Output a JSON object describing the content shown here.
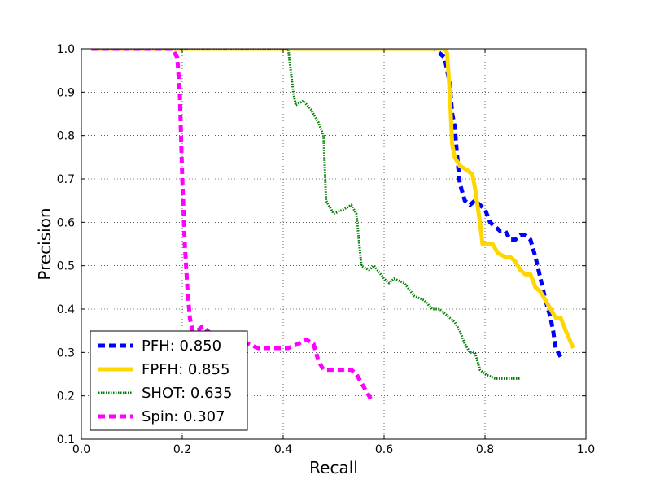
{
  "chart_data": {
    "type": "line",
    "title": "",
    "xlabel": "Recall",
    "ylabel": "Precision",
    "xlim": [
      0.0,
      1.0
    ],
    "ylim": [
      0.1,
      1.0
    ],
    "x_ticks": [
      "0.0",
      "0.2",
      "0.4",
      "0.6",
      "0.8",
      "1.0"
    ],
    "y_ticks": [
      "0.1",
      "0.2",
      "0.3",
      "0.4",
      "0.5",
      "0.6",
      "0.7",
      "0.8",
      "0.9",
      "1.0"
    ],
    "grid": true,
    "legend_position": "lower-left",
    "series": [
      {
        "name": "PFH: 0.850",
        "color": "#0000ff",
        "line_style": "dashed",
        "points": [
          [
            0.02,
            1.0
          ],
          [
            0.3,
            1.0
          ],
          [
            0.6,
            1.0
          ],
          [
            0.7,
            1.0
          ],
          [
            0.72,
            0.98
          ],
          [
            0.73,
            0.92
          ],
          [
            0.735,
            0.85
          ],
          [
            0.74,
            0.82
          ],
          [
            0.745,
            0.75
          ],
          [
            0.75,
            0.69
          ],
          [
            0.76,
            0.65
          ],
          [
            0.77,
            0.64
          ],
          [
            0.78,
            0.65
          ],
          [
            0.79,
            0.64
          ],
          [
            0.8,
            0.63
          ],
          [
            0.81,
            0.6
          ],
          [
            0.82,
            0.59
          ],
          [
            0.83,
            0.58
          ],
          [
            0.84,
            0.58
          ],
          [
            0.85,
            0.56
          ],
          [
            0.86,
            0.56
          ],
          [
            0.87,
            0.57
          ],
          [
            0.88,
            0.57
          ],
          [
            0.89,
            0.56
          ],
          [
            0.9,
            0.52
          ],
          [
            0.91,
            0.47
          ],
          [
            0.92,
            0.42
          ],
          [
            0.93,
            0.38
          ],
          [
            0.935,
            0.35
          ],
          [
            0.94,
            0.31
          ],
          [
            0.95,
            0.29
          ]
        ]
      },
      {
        "name": "FPFH: 0.855",
        "color": "#ffd700",
        "line_style": "solid",
        "points": [
          [
            0.02,
            1.0
          ],
          [
            0.3,
            1.0
          ],
          [
            0.6,
            1.0
          ],
          [
            0.72,
            1.0
          ],
          [
            0.725,
            0.99
          ],
          [
            0.73,
            0.9
          ],
          [
            0.735,
            0.78
          ],
          [
            0.74,
            0.75
          ],
          [
            0.75,
            0.73
          ],
          [
            0.765,
            0.72
          ],
          [
            0.775,
            0.71
          ],
          [
            0.78,
            0.68
          ],
          [
            0.79,
            0.6
          ],
          [
            0.795,
            0.55
          ],
          [
            0.805,
            0.55
          ],
          [
            0.815,
            0.55
          ],
          [
            0.825,
            0.53
          ],
          [
            0.84,
            0.52
          ],
          [
            0.85,
            0.52
          ],
          [
            0.86,
            0.51
          ],
          [
            0.87,
            0.49
          ],
          [
            0.88,
            0.48
          ],
          [
            0.89,
            0.48
          ],
          [
            0.9,
            0.45
          ],
          [
            0.91,
            0.44
          ],
          [
            0.92,
            0.42
          ],
          [
            0.93,
            0.4
          ],
          [
            0.94,
            0.38
          ],
          [
            0.95,
            0.38
          ],
          [
            0.96,
            0.35
          ],
          [
            0.975,
            0.31
          ]
        ]
      },
      {
        "name": "SHOT: 0.635",
        "color": "#008000",
        "line_style": "dotted",
        "points": [
          [
            0.02,
            1.0
          ],
          [
            0.2,
            1.0
          ],
          [
            0.41,
            1.0
          ],
          [
            0.415,
            0.95
          ],
          [
            0.42,
            0.9
          ],
          [
            0.425,
            0.87
          ],
          [
            0.44,
            0.88
          ],
          [
            0.455,
            0.86
          ],
          [
            0.47,
            0.83
          ],
          [
            0.48,
            0.8
          ],
          [
            0.485,
            0.65
          ],
          [
            0.49,
            0.64
          ],
          [
            0.5,
            0.62
          ],
          [
            0.52,
            0.63
          ],
          [
            0.535,
            0.64
          ],
          [
            0.545,
            0.62
          ],
          [
            0.555,
            0.5
          ],
          [
            0.57,
            0.49
          ],
          [
            0.58,
            0.5
          ],
          [
            0.6,
            0.47
          ],
          [
            0.61,
            0.46
          ],
          [
            0.62,
            0.47
          ],
          [
            0.64,
            0.46
          ],
          [
            0.66,
            0.43
          ],
          [
            0.68,
            0.42
          ],
          [
            0.695,
            0.4
          ],
          [
            0.71,
            0.4
          ],
          [
            0.72,
            0.39
          ],
          [
            0.74,
            0.37
          ],
          [
            0.75,
            0.35
          ],
          [
            0.76,
            0.32
          ],
          [
            0.77,
            0.3
          ],
          [
            0.78,
            0.3
          ],
          [
            0.79,
            0.26
          ],
          [
            0.8,
            0.25
          ],
          [
            0.82,
            0.24
          ],
          [
            0.84,
            0.24
          ],
          [
            0.86,
            0.24
          ],
          [
            0.87,
            0.24
          ]
        ]
      },
      {
        "name": "Spin: 0.307",
        "color": "#ff00ff",
        "line_style": "dashed",
        "points": [
          [
            0.02,
            1.0
          ],
          [
            0.18,
            1.0
          ],
          [
            0.19,
            0.98
          ],
          [
            0.195,
            0.9
          ],
          [
            0.2,
            0.7
          ],
          [
            0.205,
            0.55
          ],
          [
            0.21,
            0.45
          ],
          [
            0.215,
            0.38
          ],
          [
            0.22,
            0.35
          ],
          [
            0.23,
            0.35
          ],
          [
            0.24,
            0.36
          ],
          [
            0.25,
            0.35
          ],
          [
            0.26,
            0.34
          ],
          [
            0.27,
            0.33
          ],
          [
            0.29,
            0.33
          ],
          [
            0.31,
            0.33
          ],
          [
            0.33,
            0.32
          ],
          [
            0.35,
            0.31
          ],
          [
            0.37,
            0.31
          ],
          [
            0.39,
            0.31
          ],
          [
            0.41,
            0.31
          ],
          [
            0.43,
            0.32
          ],
          [
            0.445,
            0.33
          ],
          [
            0.46,
            0.32
          ],
          [
            0.465,
            0.3
          ],
          [
            0.47,
            0.28
          ],
          [
            0.48,
            0.26
          ],
          [
            0.5,
            0.26
          ],
          [
            0.52,
            0.26
          ],
          [
            0.535,
            0.26
          ],
          [
            0.545,
            0.25
          ],
          [
            0.555,
            0.23
          ],
          [
            0.565,
            0.21
          ],
          [
            0.575,
            0.19
          ]
        ]
      }
    ]
  }
}
